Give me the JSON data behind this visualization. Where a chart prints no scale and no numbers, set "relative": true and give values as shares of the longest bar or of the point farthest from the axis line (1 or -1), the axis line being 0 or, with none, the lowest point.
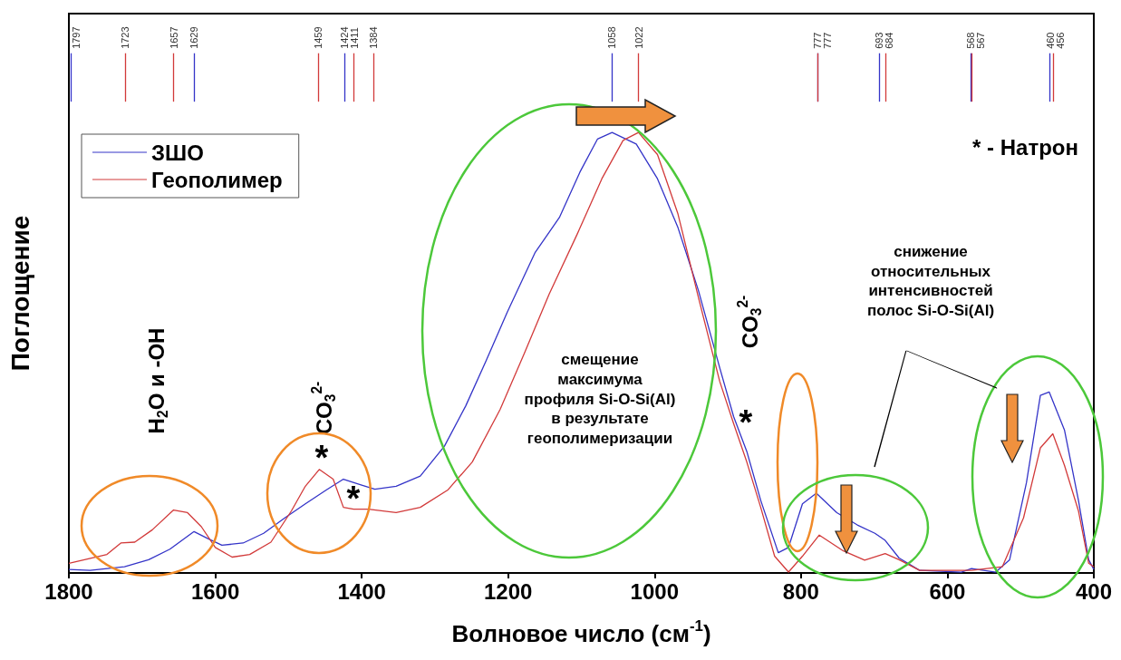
{
  "chart_data": {
    "type": "line",
    "relative": true,
    "xlabel": "Волновое число (см$^{-1}$)",
    "ylabel": "Поглощение",
    "xlim": [
      1800,
      400
    ],
    "xticks": [
      1800,
      1600,
      1400,
      1200,
      1000,
      800,
      600,
      400
    ],
    "grid": false,
    "legend": "top left",
    "marker": "none",
    "line_style": "solid",
    "series": [
      {
        "name": "ЗШО",
        "color": "#3434c8",
        "x": [
          1800,
          1771,
          1724,
          1691,
          1662,
          1629,
          1610,
          1591,
          1562,
          1534,
          1505,
          1477,
          1448,
          1425,
          1401,
          1382,
          1353,
          1320,
          1287,
          1258,
          1230,
          1201,
          1163,
          1130,
          1102,
          1078,
          1058,
          1025,
          996,
          968,
          940,
          911,
          892,
          874,
          855,
          831,
          817,
          798,
          779,
          751,
          723,
          699,
          685,
          666,
          638,
          581,
          567,
          534,
          515,
          492,
          473,
          461,
          440,
          421,
          407,
          400
        ],
        "values": [
          0.008,
          0.006,
          0.014,
          0.03,
          0.054,
          0.094,
          0.078,
          0.063,
          0.068,
          0.09,
          0.125,
          0.157,
          0.189,
          0.213,
          0.2,
          0.19,
          0.197,
          0.22,
          0.288,
          0.379,
          0.482,
          0.593,
          0.728,
          0.807,
          0.91,
          0.985,
          1.0,
          0.974,
          0.895,
          0.784,
          0.641,
          0.466,
          0.355,
          0.276,
          0.165,
          0.046,
          0.058,
          0.157,
          0.181,
          0.137,
          0.109,
          0.09,
          0.074,
          0.034,
          0.006,
          0.002,
          0.01,
          0.002,
          0.03,
          0.205,
          0.403,
          0.411,
          0.324,
          0.165,
          0.03,
          0.008
        ]
      },
      {
        "name": "Геополимер",
        "color": "#d23a3a",
        "x": [
          1800,
          1748,
          1729,
          1710,
          1686,
          1657,
          1638,
          1619,
          1600,
          1577,
          1553,
          1524,
          1496,
          1477,
          1458,
          1439,
          1425,
          1411,
          1391,
          1353,
          1320,
          1282,
          1249,
          1211,
          1178,
          1144,
          1106,
          1087,
          1072,
          1043,
          1022,
          996,
          968,
          940,
          911,
          892,
          874,
          855,
          836,
          817,
          798,
          775,
          742,
          713,
          685,
          666,
          638,
          567,
          525,
          496,
          473,
          456,
          440,
          421,
          407,
          400
        ],
        "values": [
          0.022,
          0.042,
          0.068,
          0.07,
          0.098,
          0.143,
          0.137,
          0.105,
          0.058,
          0.036,
          0.042,
          0.07,
          0.141,
          0.197,
          0.235,
          0.213,
          0.149,
          0.145,
          0.145,
          0.137,
          0.149,
          0.189,
          0.252,
          0.371,
          0.498,
          0.633,
          0.768,
          0.839,
          0.895,
          0.982,
          1.0,
          0.95,
          0.815,
          0.625,
          0.435,
          0.339,
          0.252,
          0.149,
          0.038,
          0.002,
          0.038,
          0.086,
          0.05,
          0.029,
          0.044,
          0.03,
          0.006,
          0.006,
          0.014,
          0.125,
          0.284,
          0.316,
          0.244,
          0.141,
          0.022,
          0.014
        ]
      }
    ],
    "ref_lines": [
      {
        "axis": "x",
        "value": 1797,
        "label": "1797",
        "color": "#3434c8"
      },
      {
        "axis": "x",
        "value": 1723,
        "label": "1723",
        "color": "#d23a3a"
      },
      {
        "axis": "x",
        "value": 1657,
        "label": "1657",
        "color": "#d23a3a"
      },
      {
        "axis": "x",
        "value": 1629,
        "label": "1629",
        "color": "#3434c8"
      },
      {
        "axis": "x",
        "value": 1459,
        "label": "1459",
        "color": "#d23a3a"
      },
      {
        "axis": "x",
        "value": 1424,
        "label": "1424",
        "color": "#3434c8"
      },
      {
        "axis": "x",
        "value": 1411,
        "label": "1411",
        "color": "#d23a3a"
      },
      {
        "axis": "x",
        "value": 1384,
        "label": "1384",
        "color": "#d23a3a"
      },
      {
        "axis": "x",
        "value": 1058,
        "label": "1058",
        "color": "#3434c8"
      },
      {
        "axis": "x",
        "value": 1022,
        "label": "1022",
        "color": "#d23a3a"
      },
      {
        "axis": "x",
        "value": 777,
        "label": "777",
        "color": "#3434c8"
      },
      {
        "axis": "x",
        "value": 777,
        "label": "777",
        "color": "#d23a3a"
      },
      {
        "axis": "x",
        "value": 693,
        "label": "693",
        "color": "#3434c8"
      },
      {
        "axis": "x",
        "value": 684,
        "label": "684",
        "color": "#d23a3a"
      },
      {
        "axis": "x",
        "value": 568,
        "label": "568",
        "color": "#3434c8"
      },
      {
        "axis": "x",
        "value": 567,
        "label": "567",
        "color": "#d23a3a"
      },
      {
        "axis": "x",
        "value": 460,
        "label": "460",
        "color": "#3434c8"
      },
      {
        "axis": "x",
        "value": 456,
        "label": "456",
        "color": "#d23a3a"
      }
    ],
    "annotations": [
      "H$_{2}$O и -OH",
      "CO$_{3}$$^{2-}$",
      "CO$_{3}$$^{2-}$",
      "*",
      "*",
      "*",
      "* - Натрон",
      "смещение\nмаксимума\nпрофиля Si-O-Si(Al)\nв результате\nгеополимеризации",
      "снижение\nотносительных\nинтенсивностей\nполос Si-O-Si(Al)"
    ]
  }
}
